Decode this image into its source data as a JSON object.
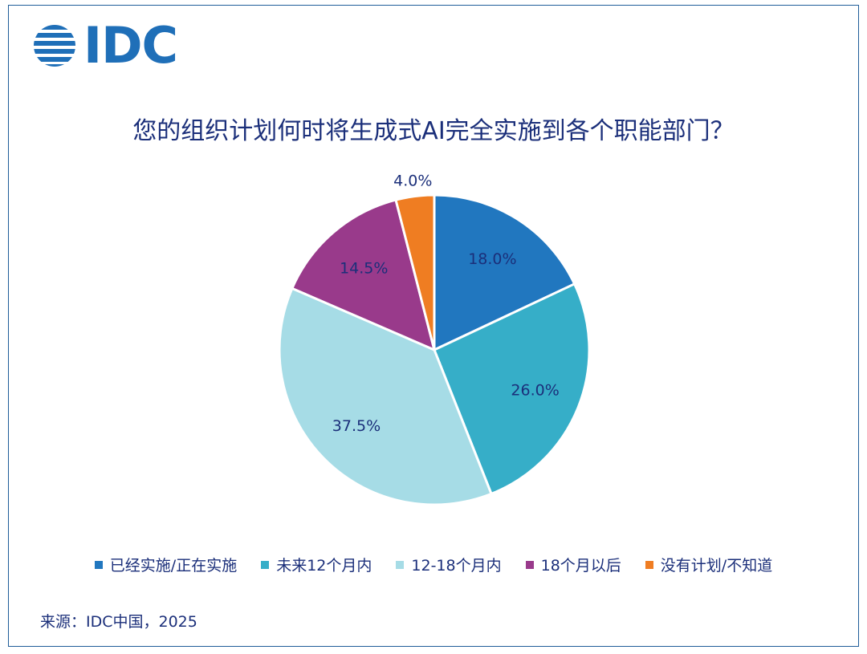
{
  "logo": {
    "text": "IDC",
    "color": "#1f6fb8"
  },
  "title": "您的组织计划何时将生成式AI完全实施到各个职能部门？",
  "source": "来源：IDC中国，2025",
  "chart_data": {
    "type": "pie",
    "title": "您的组织计划何时将生成式AI完全实施到各个职能部门？",
    "start_angle": "12 o'clock, clockwise",
    "legend_position": "bottom",
    "slices": [
      {
        "label": "已经实施/正在实施",
        "value": 18.0,
        "value_label": "18.0%",
        "color": "#2177bf"
      },
      {
        "label": "未来12个月内",
        "value": 26.0,
        "value_label": "26.0%",
        "color": "#36aec8"
      },
      {
        "label": "12-18个月内",
        "value": 37.5,
        "value_label": "37.5%",
        "color": "#a6dce6"
      },
      {
        "label": "18个月以后",
        "value": 14.5,
        "value_label": "14.5%",
        "color": "#993a8b"
      },
      {
        "label": "没有计划/不知道",
        "value": 4.0,
        "value_label": "4.0%",
        "color": "#ef7d22"
      }
    ]
  }
}
